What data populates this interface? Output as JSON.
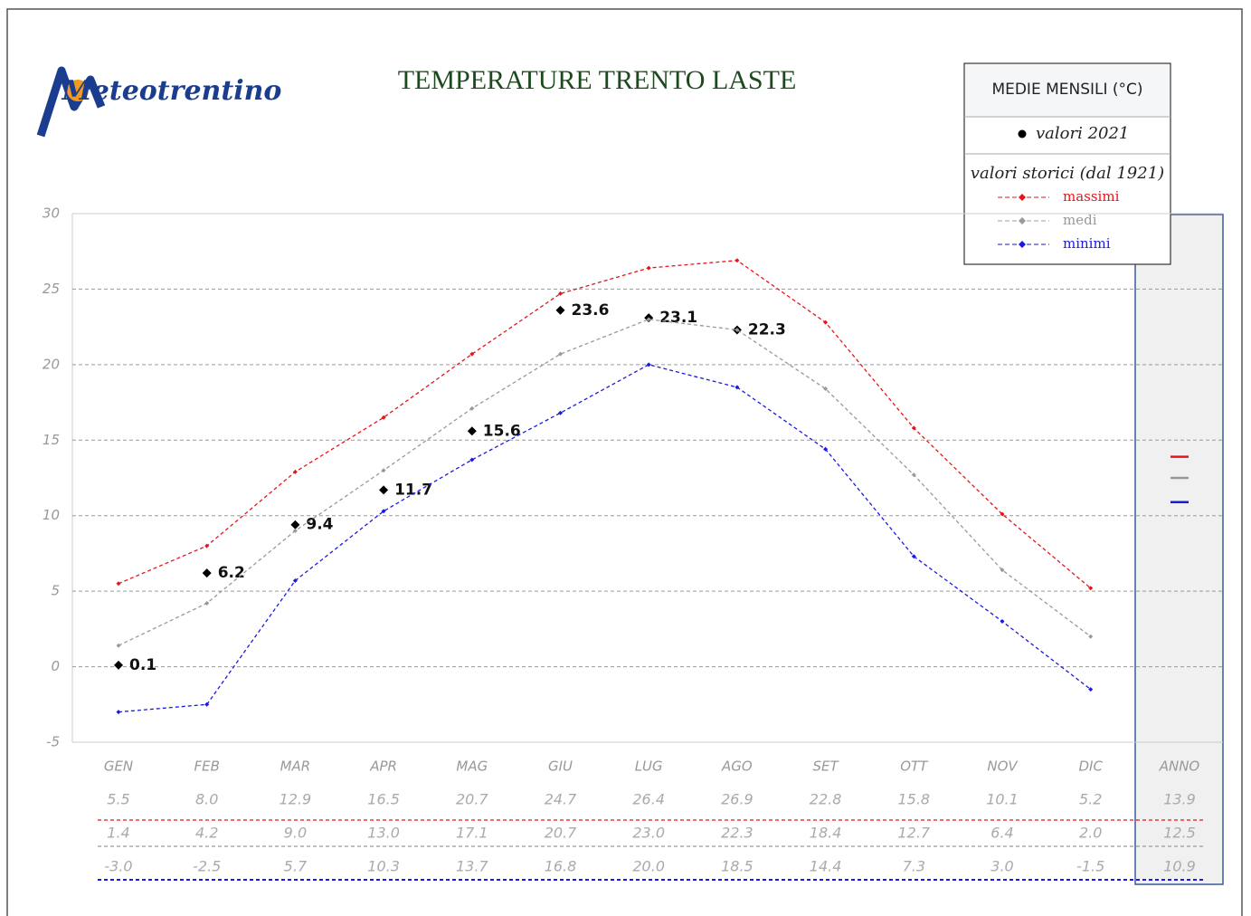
{
  "chart_data": {
    "type": "line",
    "logo": "Meteotrentino",
    "title": "TEMPERATURE TRENTO LASTE",
    "legend_title": "MEDIE MENSILI (°C)",
    "legend_history": "valori storici (dal 1921)",
    "categories": [
      "GEN",
      "FEB",
      "MAR",
      "APR",
      "MAG",
      "GIU",
      "LUG",
      "AGO",
      "SET",
      "OTT",
      "NOV",
      "DIC"
    ],
    "annual_category": "ANNO",
    "ylim": [
      -5,
      30
    ],
    "yticks": [
      -5,
      0,
      5,
      10,
      15,
      20,
      25,
      30
    ],
    "grid": true,
    "series": [
      {
        "name": "valori 2021",
        "color": "#000000",
        "values": [
          0.1,
          6.2,
          9.4,
          11.7,
          15.6,
          23.6,
          23.1,
          22.3,
          null,
          null,
          null,
          null
        ]
      },
      {
        "name": "massimi",
        "color": "#e8141a",
        "values": [
          5.5,
          8.0,
          12.9,
          16.5,
          20.7,
          24.7,
          26.4,
          26.9,
          22.8,
          15.8,
          10.1,
          5.2
        ],
        "value_labels": [
          "5.5",
          "8.0",
          "12.9",
          "16.5",
          "20.7",
          "24.7",
          "26.4",
          "26.9",
          "22.8",
          "15.8",
          "10.1",
          "5.2"
        ],
        "annual": 13.9,
        "annual_label": "13.9"
      },
      {
        "name": "medi",
        "color": "#999999",
        "values": [
          1.4,
          4.2,
          9.0,
          13.0,
          17.1,
          20.7,
          23.0,
          22.3,
          18.4,
          12.7,
          6.4,
          2.0
        ],
        "value_labels": [
          "1.4",
          "4.2",
          "9.0",
          "13.0",
          "17.1",
          "20.7",
          "23.0",
          "22.3",
          "18.4",
          "12.7",
          "6.4",
          "2.0"
        ],
        "annual": 12.5,
        "annual_label": "12.5"
      },
      {
        "name": "minimi",
        "color": "#1a1ae0",
        "values": [
          -3.0,
          -2.5,
          5.7,
          10.3,
          13.7,
          16.8,
          20.0,
          18.5,
          14.4,
          7.3,
          3.0,
          -1.5
        ],
        "value_labels": [
          "-3.0",
          "-2.5",
          "5.7",
          "10.3",
          "13.7",
          "16.8",
          "20.0",
          "18.5",
          "14.4",
          "7.3",
          "3.0",
          "-1.5"
        ],
        "annual": 10.9,
        "annual_label": "10.9"
      }
    ]
  }
}
